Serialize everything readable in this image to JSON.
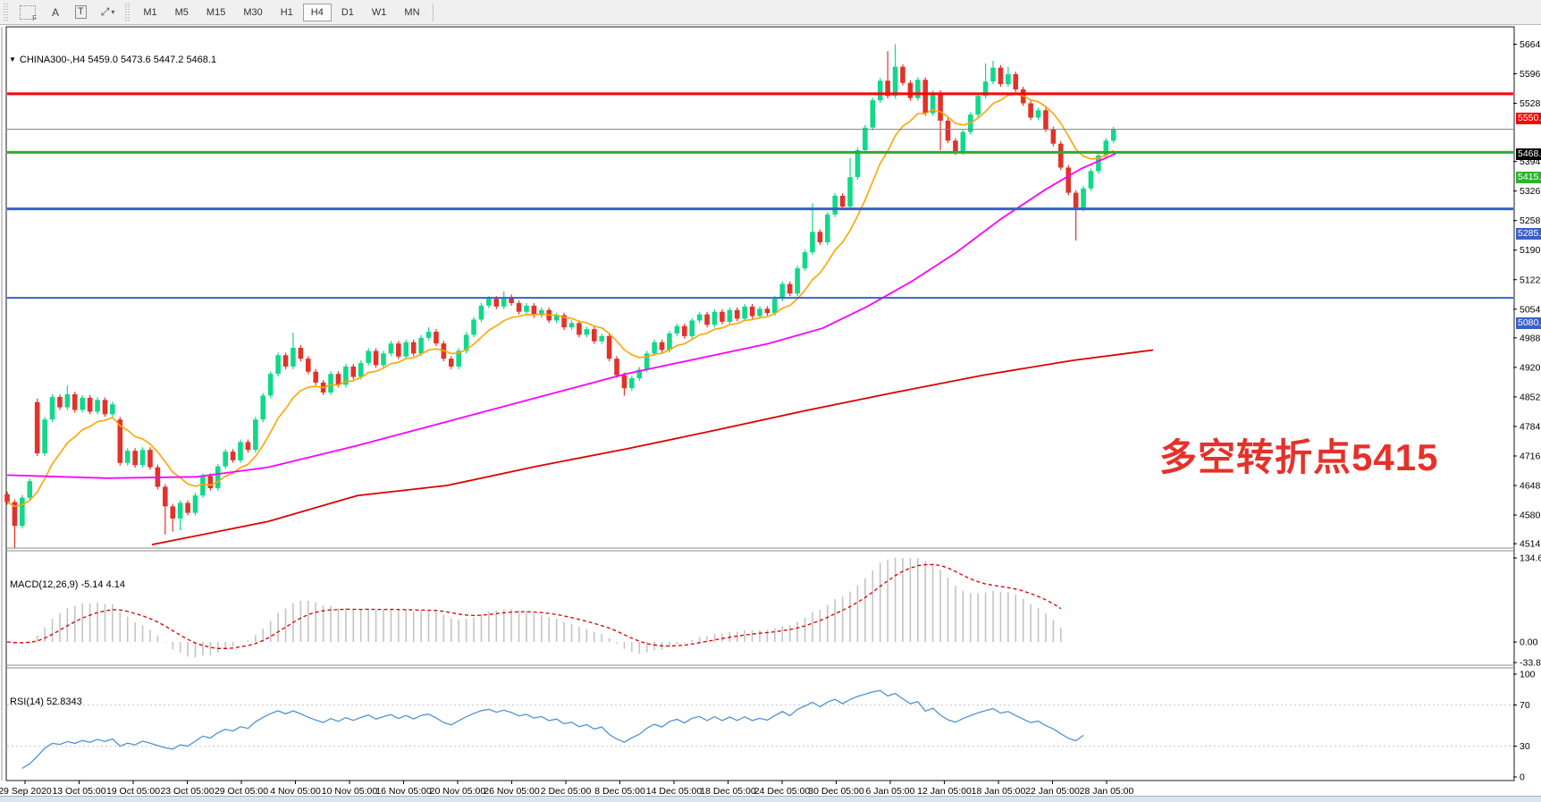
{
  "toolbar": {
    "tools": [
      {
        "name": "grid-f-tool",
        "label": "F"
      },
      {
        "name": "label-tool",
        "label": "A"
      },
      {
        "name": "textbox-tool",
        "label": "T"
      },
      {
        "name": "arrows-tool",
        "label": "⤢",
        "caret": "▾"
      }
    ],
    "timeframes": [
      {
        "label": "M1",
        "active": false
      },
      {
        "label": "M5",
        "active": false
      },
      {
        "label": "M15",
        "active": false
      },
      {
        "label": "M30",
        "active": false
      },
      {
        "label": "H1",
        "active": false
      },
      {
        "label": "H4",
        "active": true
      },
      {
        "label": "D1",
        "active": false
      },
      {
        "label": "W1",
        "active": false
      },
      {
        "label": "MN",
        "active": false
      }
    ]
  },
  "window": {
    "dropdown_icon": "▼",
    "title_line": "CHINA300-,H4  5459.0 5473.6 5447.2 5468.1"
  },
  "indicators": {
    "macd_label": "MACD(12,26,9) -5.14 4.14",
    "rsi_label": "RSI(14) 52.8343"
  },
  "annotation": {
    "text": "多空转折点5415",
    "color": "#e5312b"
  },
  "chart_data": {
    "type": "candlestick",
    "symbol": "CHINA300-",
    "timeframe": "H4",
    "title": "CHINA300-,H4",
    "ohlc_current": {
      "open": 5459.0,
      "high": 5473.6,
      "low": 5447.2,
      "close": 5468.1
    },
    "y_range": [
      4506,
      5702
    ],
    "y_ticks": [
      5664.0,
      5596.0,
      5528.0,
      5394.0,
      5326.0,
      5258.0,
      5190.0,
      5122.0,
      5054.0,
      4988.0,
      4920.0,
      4852.0,
      4784.0,
      4716.0,
      4648.0,
      4580.0,
      4514.0
    ],
    "x_labels": [
      "29 Sep 2020",
      "13 Oct 05:00",
      "19 Oct 05:00",
      "23 Oct 05:00",
      "29 Oct 05:00",
      "4 Nov 05:00",
      "10 Nov 05:00",
      "16 Nov 05:00",
      "20 Nov 05:00",
      "26 Nov 05:00",
      "2 Dec 05:00",
      "8 Dec 05:00",
      "14 Dec 05:00",
      "18 Dec 05:00",
      "24 Dec 05:00",
      "30 Dec 05:00",
      "6 Jan 05:00",
      "12 Jan 05:00",
      "18 Jan 05:00",
      "22 Jan 05:00",
      "28 Jan 05:00"
    ],
    "up_color": "#10d98a",
    "down_color": "#e1332a",
    "closes": [
      4610,
      4555,
      4620,
      4658,
      4722,
      4800,
      4852,
      4828,
      4858,
      4822,
      4850,
      4818,
      4845,
      4812,
      4835,
      4700,
      4728,
      4695,
      4730,
      4690,
      4645,
      4600,
      4572,
      4608,
      4585,
      4625,
      4670,
      4642,
      4692,
      4726,
      4706,
      4748,
      4730,
      4800,
      4855,
      4905,
      4948,
      4922,
      4965,
      4940,
      4910,
      4885,
      4862,
      4905,
      4880,
      4922,
      4898,
      4930,
      4958,
      4925,
      4952,
      4975,
      4945,
      4978,
      4952,
      4988,
      5002,
      4975,
      4940,
      4922,
      4958,
      4995,
      5030,
      5062,
      5078,
      5060,
      5082,
      5068,
      5048,
      5062,
      5040,
      5052,
      5028,
      5040,
      5012,
      5022,
      4995,
      5008,
      4980,
      4992,
      4940,
      4902,
      4872,
      4895,
      4915,
      4952,
      4978,
      4960,
      4998,
      5015,
      4992,
      5028,
      5042,
      5018,
      5048,
      5025,
      5052,
      5032,
      5060,
      5038,
      5055,
      5045,
      5078,
      5112,
      5090,
      5148,
      5185,
      5232,
      5208,
      5272,
      5315,
      5290,
      5358,
      5420,
      5472,
      5535,
      5580,
      5545,
      5612,
      5575,
      5540,
      5582,
      5505,
      5552,
      5488,
      5442,
      5415,
      5462,
      5502,
      5545,
      5578,
      5610,
      5572,
      5595,
      5560,
      5528,
      5495,
      5512,
      5468,
      5435,
      5380,
      5322,
      5285,
      5332,
      5372,
      5408,
      5442,
      5468.1
    ],
    "open_overrides": {
      "0": 4628,
      "4": 4840,
      "15": 4800
    },
    "low_overrides": {
      "1": 4505,
      "21": 4535,
      "22": 4542,
      "23": 4545,
      "82": 4855,
      "124": 5420,
      "142": 5212
    },
    "high_overrides": {
      "4": 4848,
      "8": 4878,
      "38": 5000,
      "56": 5012,
      "66": 5095,
      "107": 5298,
      "112": 5402,
      "117": 5648,
      "118": 5664,
      "130": 5620,
      "131": 5626,
      "133": 5612
    },
    "levels": [
      {
        "value": 5550.0,
        "label": "5550.0",
        "color": "#fe0000",
        "width": 3
      },
      {
        "value": 5468.1,
        "label": "5468.1",
        "color": "#000000",
        "line_color": "#808080",
        "width": 1
      },
      {
        "value": 5415.0,
        "label": "5415.0",
        "color": "#2db22d",
        "line_color": "#31a831",
        "width": 3
      },
      {
        "value": 5285.0,
        "label": "5285.0",
        "color": "#3a5fc9",
        "width": 3
      },
      {
        "value": 5080.0,
        "label": "5080.0",
        "color": "#3a5fc9",
        "width": 2
      }
    ],
    "ma_lines": [
      {
        "name": "ma-fast",
        "color": "#ffa500",
        "period": 10,
        "computed": true
      },
      {
        "name": "ma-mid",
        "color": "#ff00ff",
        "points": [
          [
            8,
            4672
          ],
          [
            120,
            4665
          ],
          [
            220,
            4668
          ],
          [
            300,
            4690
          ],
          [
            400,
            4740
          ],
          [
            500,
            4795
          ],
          [
            600,
            4850
          ],
          [
            700,
            4905
          ],
          [
            780,
            4940
          ],
          [
            860,
            4975
          ],
          [
            920,
            5010
          ],
          [
            970,
            5060
          ],
          [
            1020,
            5118
          ],
          [
            1070,
            5185
          ],
          [
            1120,
            5262
          ],
          [
            1170,
            5330
          ],
          [
            1210,
            5378
          ],
          [
            1248,
            5412
          ]
        ]
      },
      {
        "name": "ma-slow",
        "color": "#dd0000",
        "points": [
          [
            170,
            4512
          ],
          [
            300,
            4565
          ],
          [
            400,
            4625
          ],
          [
            500,
            4648
          ],
          [
            600,
            4692
          ],
          [
            700,
            4732
          ],
          [
            800,
            4775
          ],
          [
            900,
            4820
          ],
          [
            1000,
            4862
          ],
          [
            1100,
            4902
          ],
          [
            1200,
            4936
          ],
          [
            1290,
            4960
          ]
        ]
      }
    ],
    "macd": {
      "params": "12,26,9",
      "main": -5.14,
      "signal": 4.14,
      "y_ticks": [
        {
          "v": 134.62,
          "label": "134.62"
        },
        {
          "v": 0,
          "label": "0.00"
        },
        {
          "v": -33.8,
          "label": "-33.8"
        }
      ],
      "hist_color": "#c4c4c4",
      "signal_color": "#d40000",
      "end_bar": 140
    },
    "rsi": {
      "period": 14,
      "value": 52.8343,
      "y_ticks": [
        {
          "v": 100,
          "label": "100"
        },
        {
          "v": 70,
          "label": "70"
        },
        {
          "v": 30,
          "label": "30"
        },
        {
          "v": 0,
          "label": "0"
        }
      ],
      "levels": [
        70,
        30
      ],
      "color": "#4f93d4",
      "end_bar": 143
    }
  }
}
